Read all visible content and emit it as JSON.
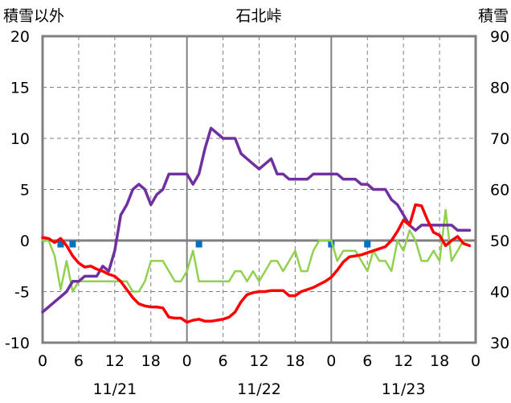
{
  "chart_data": {
    "type": "line",
    "title": "石北峠",
    "y_left_label": "積雪以外",
    "y_right_label": "積雪",
    "y_left_range": [
      -10,
      20
    ],
    "y_left_ticks": [
      "20",
      "15",
      "10",
      "5",
      "0",
      "-5",
      "-10"
    ],
    "y_right_range": [
      30,
      90
    ],
    "y_right_ticks": [
      "90",
      "80",
      "70",
      "60",
      "50",
      "40",
      "30"
    ],
    "x_range_hours": [
      0,
      72
    ],
    "x_tick_hours": [
      0,
      6,
      12,
      18,
      24,
      30,
      36,
      42,
      48,
      54,
      60,
      66,
      72
    ],
    "x_tick_labels": [
      "0",
      "6",
      "12",
      "18",
      "0",
      "6",
      "12",
      "18",
      "0",
      "6",
      "12",
      "18",
      "0"
    ],
    "date_labels": [
      {
        "text": "11/21",
        "hour": 12
      },
      {
        "text": "11/22",
        "hour": 36
      },
      {
        "text": "11/23",
        "hour": 60
      }
    ],
    "colors": {
      "snow_depth": "#7030a0",
      "temperature": "#ff0000",
      "wind": "#92d050",
      "precip": "#0070c0"
    },
    "series": [
      {
        "key": "snow_depth",
        "axis": "right",
        "points": [
          [
            0,
            36
          ],
          [
            1,
            37
          ],
          [
            2,
            38
          ],
          [
            3,
            39
          ],
          [
            4,
            40
          ],
          [
            5,
            42
          ],
          [
            6,
            42
          ],
          [
            7,
            43
          ],
          [
            8,
            43
          ],
          [
            9,
            43
          ],
          [
            10,
            45
          ],
          [
            11,
            44
          ],
          [
            12,
            48
          ],
          [
            13,
            55
          ],
          [
            14,
            57
          ],
          [
            15,
            60
          ],
          [
            16,
            61
          ],
          [
            17,
            60
          ],
          [
            18,
            57
          ],
          [
            19,
            59
          ],
          [
            20,
            60
          ],
          [
            21,
            63
          ],
          [
            22,
            63
          ],
          [
            23,
            63
          ],
          [
            24,
            63
          ],
          [
            25,
            61
          ],
          [
            26,
            63
          ],
          [
            27,
            68
          ],
          [
            28,
            72
          ],
          [
            29,
            71
          ],
          [
            30,
            70
          ],
          [
            31,
            70
          ],
          [
            32,
            70
          ],
          [
            33,
            67
          ],
          [
            34,
            66
          ],
          [
            35,
            65
          ],
          [
            36,
            64
          ],
          [
            37,
            65
          ],
          [
            38,
            66
          ],
          [
            39,
            63
          ],
          [
            40,
            63
          ],
          [
            41,
            62
          ],
          [
            42,
            62
          ],
          [
            43,
            62
          ],
          [
            44,
            62
          ],
          [
            45,
            63
          ],
          [
            46,
            63
          ],
          [
            47,
            63
          ],
          [
            48,
            63
          ],
          [
            49,
            63
          ],
          [
            50,
            62
          ],
          [
            51,
            62
          ],
          [
            52,
            62
          ],
          [
            53,
            61
          ],
          [
            54,
            61
          ],
          [
            55,
            60
          ],
          [
            56,
            60
          ],
          [
            57,
            60
          ],
          [
            58,
            58
          ],
          [
            59,
            57
          ],
          [
            60,
            55
          ],
          [
            61,
            53
          ],
          [
            62,
            52
          ],
          [
            63,
            53
          ],
          [
            64,
            53
          ],
          [
            65,
            53
          ],
          [
            66,
            53
          ],
          [
            67,
            53
          ],
          [
            68,
            53
          ],
          [
            69,
            52
          ],
          [
            70,
            52
          ],
          [
            71,
            52
          ]
        ]
      },
      {
        "key": "temperature",
        "axis": "left",
        "points": [
          [
            0,
            0.3
          ],
          [
            1,
            0.2
          ],
          [
            2,
            -0.2
          ],
          [
            3,
            0.2
          ],
          [
            4,
            -0.5
          ],
          [
            5,
            -1.5
          ],
          [
            6,
            -2.2
          ],
          [
            7,
            -2.6
          ],
          [
            8,
            -2.5
          ],
          [
            9,
            -2.8
          ],
          [
            10,
            -3.0
          ],
          [
            11,
            -3.3
          ],
          [
            12,
            -3.5
          ],
          [
            13,
            -4.0
          ],
          [
            14,
            -4.8
          ],
          [
            15,
            -5.6
          ],
          [
            16,
            -6.2
          ],
          [
            17,
            -6.4
          ],
          [
            18,
            -6.5
          ],
          [
            19,
            -6.5
          ],
          [
            20,
            -6.6
          ],
          [
            21,
            -7.5
          ],
          [
            22,
            -7.6
          ],
          [
            23,
            -7.6
          ],
          [
            24,
            -8.0
          ],
          [
            25,
            -7.8
          ],
          [
            26,
            -7.7
          ],
          [
            27,
            -7.9
          ],
          [
            28,
            -7.9
          ],
          [
            29,
            -7.8
          ],
          [
            30,
            -7.7
          ],
          [
            31,
            -7.5
          ],
          [
            32,
            -7.0
          ],
          [
            33,
            -6.0
          ],
          [
            34,
            -5.3
          ],
          [
            35,
            -5.1
          ],
          [
            36,
            -5.0
          ],
          [
            37,
            -5.0
          ],
          [
            38,
            -4.9
          ],
          [
            39,
            -4.9
          ],
          [
            40,
            -4.9
          ],
          [
            41,
            -5.4
          ],
          [
            42,
            -5.4
          ],
          [
            43,
            -5.0
          ],
          [
            44,
            -4.8
          ],
          [
            45,
            -4.6
          ],
          [
            46,
            -4.3
          ],
          [
            47,
            -4.0
          ],
          [
            48,
            -3.6
          ],
          [
            49,
            -2.9
          ],
          [
            50,
            -2.1
          ],
          [
            51,
            -1.6
          ],
          [
            52,
            -1.5
          ],
          [
            53,
            -1.4
          ],
          [
            54,
            -1.2
          ],
          [
            55,
            -1.0
          ],
          [
            56,
            -0.8
          ],
          [
            57,
            -0.6
          ],
          [
            58,
            0.0
          ],
          [
            59,
            0.9
          ],
          [
            60,
            2.0
          ],
          [
            61,
            1.5
          ],
          [
            62,
            3.5
          ],
          [
            63,
            3.4
          ],
          [
            64,
            2.0
          ],
          [
            65,
            0.8
          ],
          [
            66,
            0.5
          ],
          [
            67,
            -0.5
          ],
          [
            68,
            0.0
          ],
          [
            69,
            0.4
          ],
          [
            70,
            -0.3
          ],
          [
            71,
            -0.5
          ]
        ]
      },
      {
        "key": "wind",
        "axis": "left",
        "points": [
          [
            0,
            0
          ],
          [
            1,
            0
          ],
          [
            2,
            -1.5
          ],
          [
            3,
            -4.8
          ],
          [
            4,
            -2.0
          ],
          [
            5,
            -5.0
          ],
          [
            6,
            -4.0
          ],
          [
            7,
            -4.0
          ],
          [
            8,
            -4.0
          ],
          [
            9,
            -4.0
          ],
          [
            10,
            -4.0
          ],
          [
            11,
            -4.0
          ],
          [
            12,
            -4.0
          ],
          [
            13,
            -4.0
          ],
          [
            14,
            -4.0
          ],
          [
            15,
            -5.0
          ],
          [
            16,
            -5.0
          ],
          [
            17,
            -4.0
          ],
          [
            18,
            -2.0
          ],
          [
            19,
            -2.0
          ],
          [
            20,
            -2.0
          ],
          [
            21,
            -3.0
          ],
          [
            22,
            -4.0
          ],
          [
            23,
            -4.0
          ],
          [
            24,
            -3.0
          ],
          [
            25,
            -1.0
          ],
          [
            26,
            -4.0
          ],
          [
            27,
            -4.0
          ],
          [
            28,
            -4.0
          ],
          [
            29,
            -4.0
          ],
          [
            30,
            -4.0
          ],
          [
            31,
            -4.0
          ],
          [
            32,
            -3.0
          ],
          [
            33,
            -3.0
          ],
          [
            34,
            -4.0
          ],
          [
            35,
            -3.0
          ],
          [
            36,
            -4.0
          ],
          [
            37,
            -3.0
          ],
          [
            38,
            -2.0
          ],
          [
            39,
            -2.0
          ],
          [
            40,
            -3.0
          ],
          [
            41,
            -2.0
          ],
          [
            42,
            -1.0
          ],
          [
            43,
            -3.0
          ],
          [
            44,
            -3.0
          ],
          [
            45,
            -1.0
          ],
          [
            46,
            0.0
          ],
          [
            47,
            0.0
          ],
          [
            48,
            0.0
          ],
          [
            49,
            -2.0
          ],
          [
            50,
            -1.0
          ],
          [
            51,
            -1.0
          ],
          [
            52,
            -1.0
          ],
          [
            53,
            -2.0
          ],
          [
            54,
            -3.0
          ],
          [
            55,
            -1.0
          ],
          [
            56,
            -2.0
          ],
          [
            57,
            -2.0
          ],
          [
            58,
            -3.0
          ],
          [
            59,
            0.0
          ],
          [
            60,
            -1.0
          ],
          [
            61,
            1.0
          ],
          [
            62,
            0.0
          ],
          [
            63,
            -2.0
          ],
          [
            64,
            -2.0
          ],
          [
            65,
            -1.0
          ],
          [
            66,
            -2.0
          ],
          [
            67,
            3.0
          ],
          [
            68,
            -2.0
          ],
          [
            69,
            -1.0
          ],
          [
            70,
            0.0
          ]
        ]
      },
      {
        "key": "precip",
        "axis": "left",
        "type": "bar",
        "points": [
          [
            3,
            -0.6
          ],
          [
            5,
            -0.6
          ],
          [
            26,
            -0.6
          ],
          [
            48,
            -0.6
          ],
          [
            54,
            -0.6
          ]
        ]
      }
    ]
  }
}
